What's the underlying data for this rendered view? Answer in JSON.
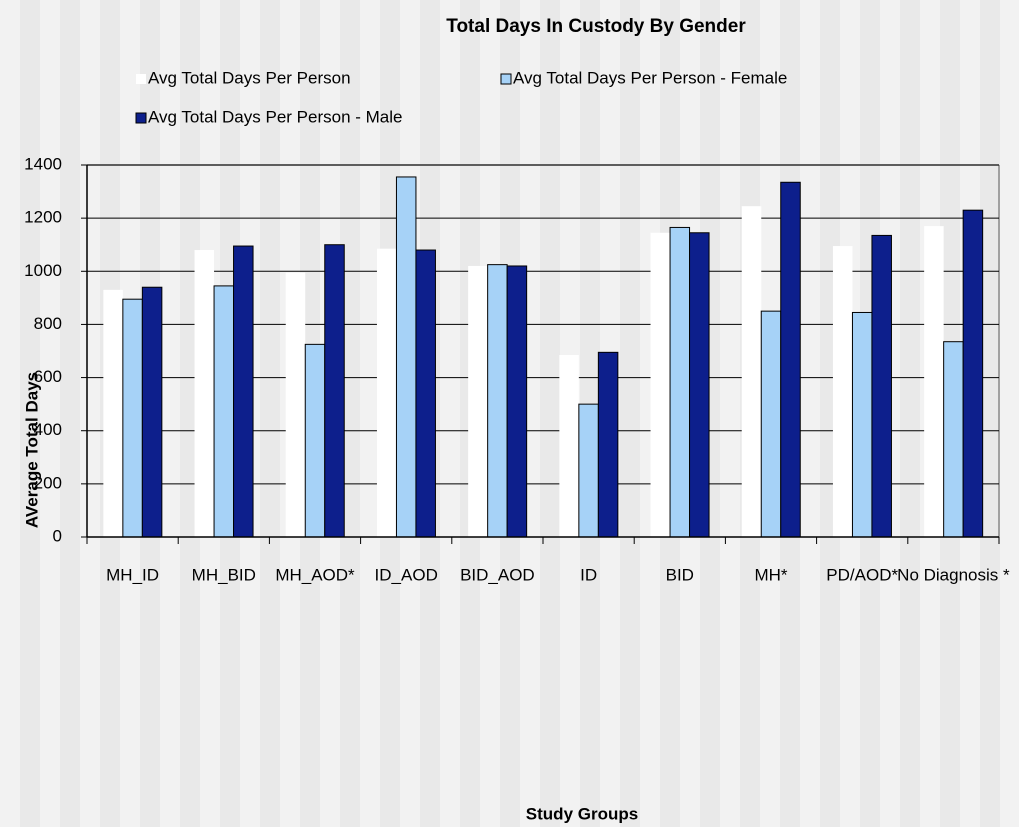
{
  "chart_data": {
    "type": "bar",
    "title": "Total Days In Custody By Gender",
    "x_label": "Study Groups",
    "y_label": "AVerage Total Days",
    "categories": [
      "MH_ID",
      "MH_BID",
      "MH_AOD*",
      "ID_AOD",
      "BID_AOD",
      "ID",
      "BID",
      "MH*",
      "PD/AOD*",
      "No Diagnosis *"
    ],
    "series": [
      {
        "name": "Avg Total Days Per Person",
        "color": "#ffffff",
        "values": [
          930,
          1080,
          995,
          1085,
          1020,
          685,
          1145,
          1245,
          1095,
          1170
        ]
      },
      {
        "name": "Avg Total Days Per Person - Female",
        "color": "#a6d2f7",
        "values": [
          895,
          945,
          725,
          1355,
          1025,
          500,
          1165,
          850,
          845,
          735
        ]
      },
      {
        "name": "Avg Total Days Per Person - Male",
        "color": "#0d1f8c",
        "values": [
          940,
          1095,
          1100,
          1080,
          1020,
          695,
          1145,
          1335,
          1135,
          1230
        ]
      }
    ],
    "ylim": [
      0,
      1400
    ],
    "yticks": [
      0,
      200,
      400,
      600,
      800,
      1000,
      1200,
      1400
    ],
    "grid": true
  }
}
